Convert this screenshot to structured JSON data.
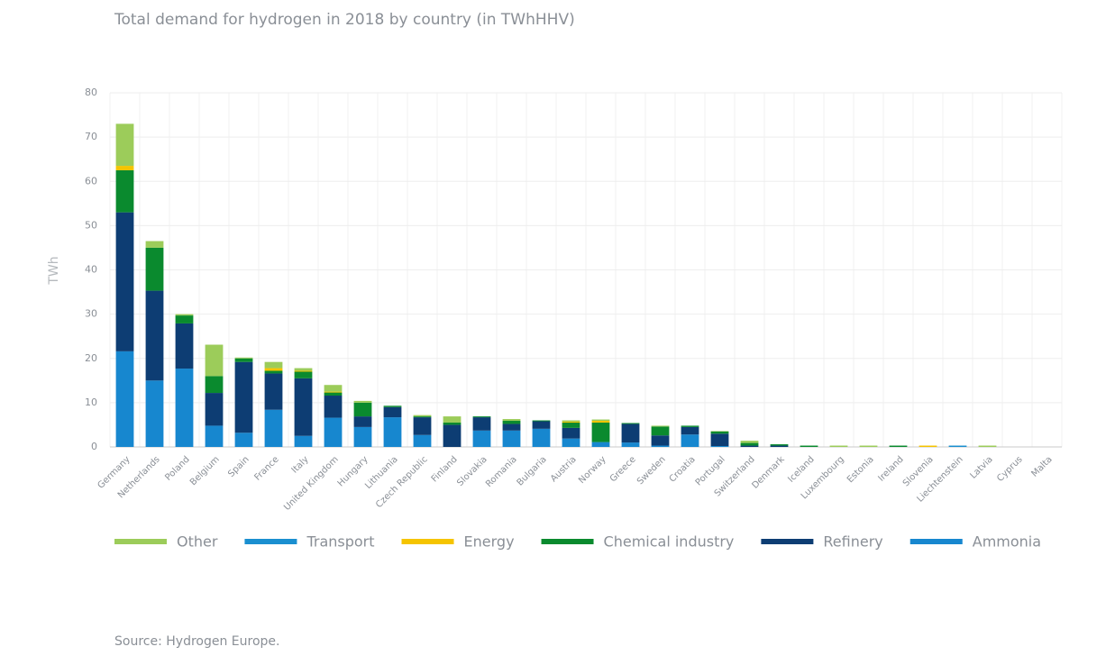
{
  "chart_data": {
    "type": "bar",
    "stacked": true,
    "title": "Total demand for hydrogen in 2018 by country (in TWhHHV)",
    "y_label": "TWh",
    "source": "Source: Hydrogen Europe.",
    "categories": [
      "Germany",
      "Netherlands",
      "Poland",
      "Belgium",
      "Spain",
      "France",
      "Italy",
      "United Kingdom",
      "Hungary",
      "Lithuania",
      "Czech Republic",
      "Finland",
      "Slovakia",
      "Romania",
      "Bulgaria",
      "Austria",
      "Norway",
      "Greece",
      "Sweden",
      "Croatia",
      "Portugal",
      "Switzerland",
      "Denmark",
      "Iceland",
      "Luxembourg",
      "Estonia",
      "Ireland",
      "Slovenia",
      "Liechtenstein",
      "Latvia",
      "Cyprus",
      "Malta"
    ],
    "series": [
      {
        "name": "Ammonia",
        "color": "#1787cf",
        "values": [
          21.6,
          15,
          17.7,
          4.8,
          3.2,
          8.4,
          2.5,
          6.6,
          4.5,
          6.7,
          2.7,
          0,
          3.7,
          3.7,
          4.1,
          1.9,
          1.1,
          1,
          0.3,
          2.8,
          0.2,
          0,
          0,
          0,
          0,
          0,
          0,
          0,
          0,
          0,
          0,
          0
        ]
      },
      {
        "name": "Refinery",
        "color": "#0d3d73",
        "values": [
          31.4,
          20.3,
          10.2,
          7.4,
          16,
          8.2,
          13,
          5,
          2.4,
          2.3,
          4,
          5,
          3,
          1.5,
          1.7,
          2.4,
          0,
          4.2,
          2.3,
          1.7,
          2.8,
          0.3,
          0.3,
          0,
          0,
          0,
          0,
          0,
          0,
          0,
          0,
          0
        ]
      },
      {
        "name": "Chemical industry",
        "color": "#0a8a2e",
        "values": [
          9.5,
          9.7,
          1.8,
          3.8,
          0.8,
          0.6,
          1.5,
          0.7,
          3.1,
          0.3,
          0.2,
          0.5,
          0.2,
          0.7,
          0.2,
          1.2,
          4.4,
          0.2,
          2,
          0.3,
          0.5,
          0.6,
          0.3,
          0.3,
          0,
          0,
          0.3,
          0,
          0,
          0,
          0,
          0
        ]
      },
      {
        "name": "Energy",
        "color": "#f5c400",
        "values": [
          1,
          0,
          0,
          0,
          0,
          0.6,
          0.2,
          0.2,
          0,
          0,
          0,
          0,
          0,
          0,
          0,
          0.2,
          0.4,
          0,
          0,
          0,
          0,
          0,
          0,
          0,
          0,
          0,
          0,
          0.3,
          0,
          0,
          0,
          0
        ]
      },
      {
        "name": "Transport",
        "color": "#1a8fd0",
        "values": [
          0,
          0,
          0,
          0,
          0,
          0,
          0,
          0,
          0,
          0,
          0,
          0,
          0,
          0,
          0,
          0,
          0,
          0,
          0,
          0,
          0,
          0,
          0,
          0,
          0,
          0,
          0,
          0,
          0.3,
          0,
          0,
          0
        ]
      },
      {
        "name": "Other",
        "color": "#9ccc5a",
        "values": [
          9.5,
          1.5,
          0.3,
          7.1,
          0.2,
          1.4,
          0.6,
          1.5,
          0.4,
          0,
          0.3,
          1.4,
          0,
          0.4,
          0,
          0.3,
          0.3,
          0,
          0.2,
          0,
          0.1,
          0.5,
          0,
          0,
          0.3,
          0.3,
          0,
          0,
          0,
          0.3,
          0,
          0
        ]
      }
    ],
    "ylim": [
      0,
      80
    ],
    "yticks": [
      0,
      10,
      20,
      30,
      40,
      50,
      60,
      70,
      80
    ],
    "grid": true
  }
}
